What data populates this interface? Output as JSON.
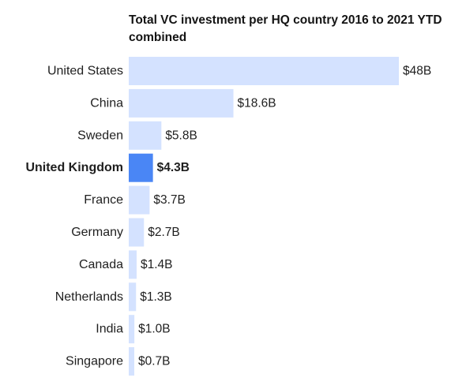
{
  "chart_data": {
    "type": "bar",
    "orientation": "horizontal",
    "title": "Total VC investment per HQ country 2016 to 2021 YTD combined",
    "categories": [
      "United States",
      "China",
      "Sweden",
      "United Kingdom",
      "France",
      "Germany",
      "Canada",
      "Netherlands",
      "India",
      "Singapore"
    ],
    "values": [
      48,
      18.6,
      5.8,
      4.3,
      3.7,
      2.7,
      1.4,
      1.3,
      1.0,
      0.7
    ],
    "value_labels": [
      "$48B",
      "$18.6B",
      "$5.8B",
      "$4.3B",
      "$3.7B",
      "$2.7B",
      "$1.4B",
      "$1.3B",
      "$1.0B",
      "$0.7B"
    ],
    "highlight": "United Kingdom",
    "xlim": [
      0,
      48
    ],
    "grid": false,
    "legend": "none",
    "colors": {
      "bar": "#d4e2ff",
      "highlight": "#4a86f5"
    }
  }
}
